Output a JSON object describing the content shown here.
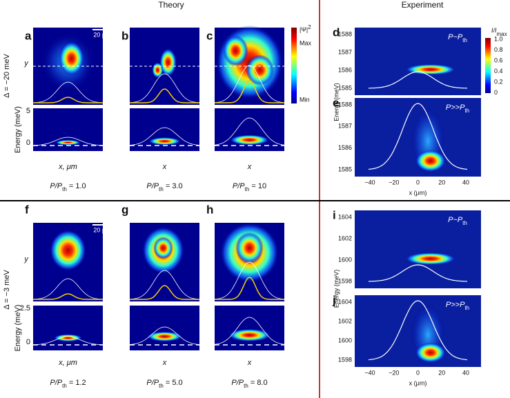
{
  "headers": {
    "theory": "Theory",
    "experiment": "Experiment"
  },
  "rows": [
    {
      "delta": "Δ = −20 meV",
      "energy_label": "Energy (meV)",
      "y_label": "y",
      "energy_ticks": [
        "5",
        "0"
      ],
      "panels": [
        {
          "label": "a",
          "x_label": "x, μm",
          "ratio": [
            "P/P",
            "th",
            " = 1.0"
          ],
          "scale_bar": "20 μm"
        },
        {
          "label": "b",
          "x_label": "x",
          "ratio": [
            "P/P",
            "th",
            " = 3.0"
          ]
        },
        {
          "label": "c",
          "x_label": "x",
          "ratio": [
            "P/P",
            "th",
            " = 10"
          ]
        }
      ],
      "colorbar": {
        "title": [
          "|Ψ|",
          "2"
        ],
        "max": "Max",
        "min": "Min"
      },
      "experiment": {
        "energy_label": "Energy (meV)",
        "x_label": "x (μm)",
        "xticks": [
          "−40",
          "−20",
          "0",
          "20",
          "40"
        ],
        "panels": [
          {
            "label": "d",
            "annotation": [
              "P~P",
              "th"
            ],
            "yticks": [
              "1588",
              "1587",
              "1586",
              "1585"
            ]
          },
          {
            "label": "e",
            "annotation": [
              "P>>P",
              "th"
            ],
            "yticks": [
              "1588",
              "1587",
              "1586",
              "1585"
            ]
          }
        ],
        "colorbar": {
          "title": [
            "I/I",
            "max"
          ],
          "ticks": [
            "1.0",
            "0.8",
            "0.6",
            "0.4",
            "0.2",
            "0"
          ]
        }
      }
    },
    {
      "delta": "Δ = −3 meV",
      "energy_label": "Energy (meV)",
      "y_label": "y",
      "energy_ticks": [
        "2.5",
        "0"
      ],
      "panels": [
        {
          "label": "f",
          "x_label": "x, μm",
          "ratio": [
            "P/P",
            "th",
            " = 1.2"
          ],
          "scale_bar": "20 μm"
        },
        {
          "label": "g",
          "x_label": "x",
          "ratio": [
            "P/P",
            "th",
            " = 5.0"
          ]
        },
        {
          "label": "h",
          "x_label": "x",
          "ratio": [
            "P/P",
            "th",
            " = 8.0"
          ]
        }
      ],
      "experiment": {
        "energy_label": "Energy (meV)",
        "x_label": "x (μm)",
        "xticks": [
          "−40",
          "−20",
          "0",
          "20",
          "40"
        ],
        "panels": [
          {
            "label": "i",
            "annotation": [
              "P~P",
              "th"
            ],
            "yticks": [
              "1604",
              "1602",
              "1600",
              "1598"
            ]
          },
          {
            "label": "j",
            "annotation": [
              "P>>P",
              "th"
            ],
            "yticks": [
              "1604",
              "1602",
              "1600",
              "1598"
            ]
          }
        ]
      }
    }
  ]
}
